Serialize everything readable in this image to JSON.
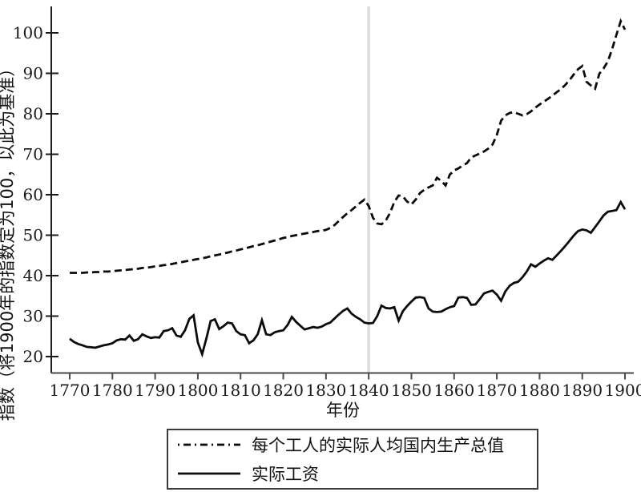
{
  "chart_data": {
    "type": "line",
    "title": "",
    "xlabel": "年份",
    "ylabel": "指数（将1900年的指数定为100，以此为基准）",
    "x_ticks": [
      1770,
      1780,
      1790,
      1800,
      1810,
      1820,
      1830,
      1840,
      1850,
      1860,
      1870,
      1880,
      1890,
      1900
    ],
    "y_ticks": [
      20,
      30,
      40,
      50,
      60,
      70,
      80,
      90,
      100
    ],
    "xlim": [
      1766,
      1902
    ],
    "ylim": [
      16,
      106
    ],
    "grid": false,
    "legend_position": "bottom-center-boxed",
    "line_color": "#0b0b0b",
    "reference_line": {
      "axis": "x",
      "value": 1840,
      "color": "#dcdcdc"
    },
    "x": [
      1770,
      1771,
      1772,
      1773,
      1774,
      1775,
      1776,
      1777,
      1778,
      1779,
      1780,
      1781,
      1782,
      1783,
      1784,
      1785,
      1786,
      1787,
      1788,
      1789,
      1790,
      1791,
      1792,
      1793,
      1794,
      1795,
      1796,
      1797,
      1798,
      1799,
      1800,
      1801,
      1802,
      1803,
      1804,
      1805,
      1806,
      1807,
      1808,
      1809,
      1810,
      1811,
      1812,
      1813,
      1814,
      1815,
      1816,
      1817,
      1818,
      1819,
      1820,
      1821,
      1822,
      1823,
      1824,
      1825,
      1826,
      1827,
      1828,
      1829,
      1830,
      1831,
      1832,
      1833,
      1834,
      1835,
      1836,
      1837,
      1838,
      1839,
      1840,
      1841,
      1842,
      1843,
      1844,
      1845,
      1846,
      1847,
      1848,
      1849,
      1850,
      1851,
      1852,
      1853,
      1854,
      1855,
      1856,
      1857,
      1858,
      1859,
      1860,
      1861,
      1862,
      1863,
      1864,
      1865,
      1866,
      1867,
      1868,
      1869,
      1870,
      1871,
      1872,
      1873,
      1874,
      1875,
      1876,
      1877,
      1878,
      1879,
      1880,
      1881,
      1882,
      1883,
      1884,
      1885,
      1886,
      1887,
      1888,
      1889,
      1890,
      1891,
      1892,
      1893,
      1894,
      1895,
      1896,
      1897,
      1898,
      1899,
      1900
    ],
    "series": [
      {
        "name": "每个工人的实际人均国内生产总值",
        "style": "dashed",
        "color": "#0b0b0b",
        "values": [
          40.7,
          40.7,
          40.7,
          40.7,
          40.8,
          40.8,
          40.9,
          40.9,
          41.0,
          41.0,
          41.1,
          41.2,
          41.3,
          41.4,
          41.5,
          41.6,
          41.7,
          41.9,
          42.0,
          42.1,
          42.3,
          42.4,
          42.6,
          42.7,
          42.9,
          43.1,
          43.3,
          43.5,
          43.7,
          43.9,
          44.1,
          44.3,
          44.5,
          44.8,
          45.0,
          45.2,
          45.5,
          45.7,
          46.0,
          46.2,
          46.5,
          46.7,
          47.0,
          47.3,
          47.5,
          47.8,
          48.1,
          48.4,
          48.7,
          49.0,
          49.3,
          49.5,
          49.8,
          50.0,
          50.2,
          50.4,
          50.6,
          50.8,
          51.0,
          51.1,
          51.3,
          51.8,
          52.5,
          53.5,
          54.5,
          55.4,
          56.2,
          57.1,
          58.0,
          58.8,
          57.2,
          54.3,
          52.9,
          52.7,
          53.6,
          55.5,
          58.2,
          59.8,
          59.6,
          58.3,
          57.6,
          58.8,
          60.4,
          61.2,
          61.8,
          62.3,
          64.2,
          63.4,
          62.3,
          65.0,
          66.0,
          66.5,
          67.2,
          67.8,
          69.2,
          69.7,
          70.2,
          70.7,
          71.4,
          72.4,
          74.8,
          78.3,
          79.6,
          80.2,
          80.4,
          80.0,
          79.6,
          79.9,
          80.6,
          81.5,
          82.3,
          83.0,
          83.7,
          84.5,
          85.3,
          86.1,
          87.1,
          88.3,
          89.7,
          91.0,
          91.8,
          87.9,
          87.0,
          86.2,
          89.9,
          91.2,
          93.0,
          96.0,
          99.5,
          102.9,
          100.8
        ]
      },
      {
        "name": "实际工资",
        "style": "solid",
        "color": "#0b0b0b",
        "values": [
          24.4,
          23.6,
          23.1,
          22.8,
          22.4,
          22.3,
          22.2,
          22.5,
          22.8,
          23.0,
          23.3,
          24.0,
          24.3,
          24.2,
          25.2,
          23.9,
          24.3,
          25.5,
          25.0,
          24.6,
          24.8,
          24.7,
          26.3,
          26.5,
          27.0,
          25.2,
          24.9,
          26.5,
          29.3,
          30.2,
          23.5,
          20.6,
          24.5,
          28.8,
          29.2,
          26.8,
          27.5,
          28.4,
          28.2,
          26.3,
          25.5,
          25.3,
          23.3,
          24.0,
          25.5,
          29.0,
          25.5,
          25.3,
          26.0,
          26.3,
          26.5,
          27.8,
          29.8,
          28.6,
          27.6,
          26.7,
          27.0,
          27.3,
          27.1,
          27.4,
          28.0,
          28.4,
          29.4,
          30.4,
          31.3,
          31.9,
          30.6,
          29.8,
          29.2,
          28.4,
          28.2,
          28.3,
          30.0,
          32.6,
          32.0,
          31.9,
          32.2,
          28.9,
          31.2,
          32.5,
          33.6,
          34.6,
          34.7,
          34.5,
          31.9,
          31.1,
          31.0,
          31.1,
          31.7,
          32.2,
          32.5,
          34.6,
          34.7,
          34.5,
          32.8,
          32.9,
          34.2,
          35.6,
          36.0,
          36.3,
          35.3,
          33.8,
          36.1,
          37.5,
          38.2,
          38.5,
          39.6,
          41.0,
          42.8,
          42.2,
          43.0,
          43.7,
          44.3,
          43.9,
          45.0,
          46.1,
          47.3,
          48.6,
          49.9,
          51.0,
          51.4,
          51.2,
          50.6,
          52.0,
          53.4,
          54.9,
          55.8,
          56.0,
          56.2,
          58.2,
          56.4
        ]
      }
    ]
  }
}
